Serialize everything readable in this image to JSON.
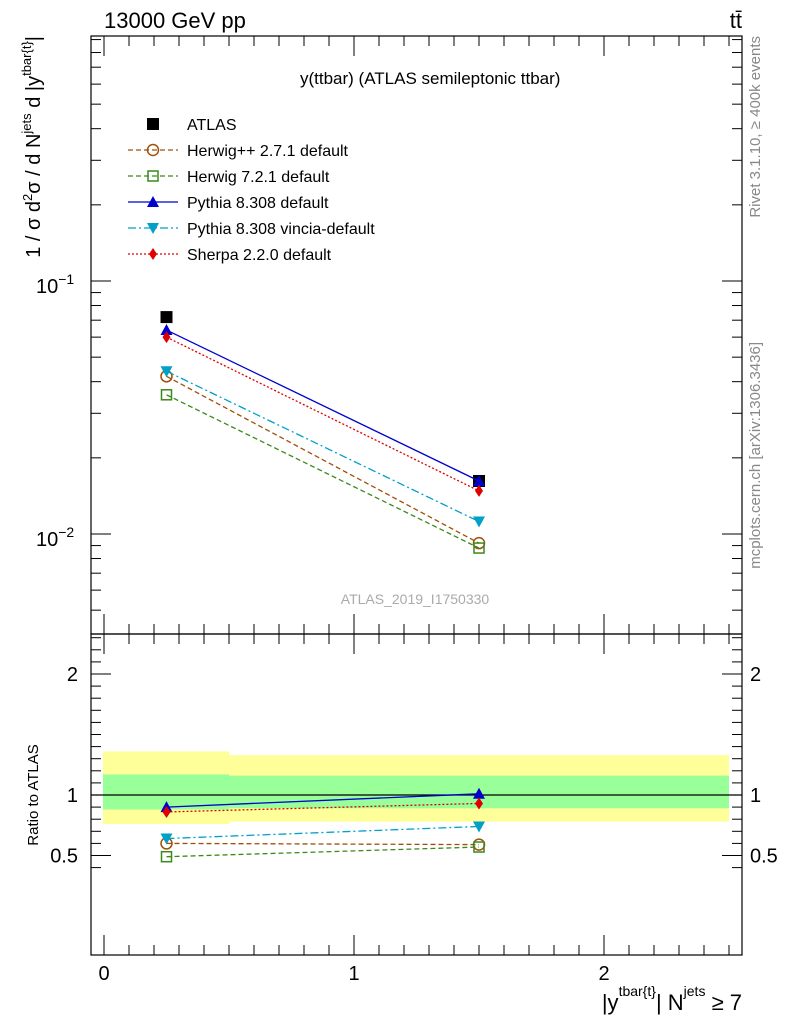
{
  "header": {
    "energy_label": "13000 GeV pp",
    "process_label": "tt̄"
  },
  "plot_title": "y(ttbar) (ATLAS semileptonic ttbar)",
  "watermark": "ATLAS_2019_I1750330",
  "side_text": {
    "rivet": "Rivet 3.1.10, ≥ 400k events",
    "mcplots": "mcplots.cern.ch [arXiv:1306.3436]"
  },
  "axes": {
    "main_ylabel": "1 / σ d²σ / d Nʲᵉᵗˢ d |y^tbar{t}|",
    "main_ylabel_parts": {
      "a": "1 / σ d",
      "b": "2",
      "c": "σ / d N",
      "d": "jets",
      "e": " d |y",
      "f": "tbar{t}",
      "g": "|"
    },
    "ratio_ylabel": "Ratio to ATLAS",
    "xlabel_parts": {
      "a": "|y",
      "b": "tbar{t}",
      "c": "| N",
      "d": "jets",
      "e": " ≥ 7"
    },
    "main_ytick_labels": {
      "e1_base": "10",
      "e1_exp": "−1",
      "e2_base": "10",
      "e2_exp": "−2"
    },
    "ratio_ytick_labels": [
      "0.5",
      "1",
      "2"
    ],
    "xtick_labels": [
      "0",
      "1",
      "2"
    ]
  },
  "colors": {
    "atlas": "#000000",
    "herwigpp": "#a0500a",
    "herwig7": "#3a8a1a",
    "pythia": "#0000cc",
    "vincia": "#00a0c8",
    "sherpa": "#e00000",
    "band_inner": "#99ff99",
    "band_outer": "#ffff99"
  },
  "chart_data": {
    "type": "line",
    "xlim": [
      -0.1,
      2.55
    ],
    "main_ylim": [
      0.004,
      1.0
    ],
    "main_yscale": "log",
    "ratio_ylim": [
      0.3,
      2.5
    ],
    "x": [
      0.25,
      1.5
    ],
    "series": [
      {
        "key": "atlas",
        "name": "ATLAS",
        "values": [
          0.072,
          0.0162
        ],
        "marker": "square-filled",
        "line": "none"
      },
      {
        "key": "herwigpp",
        "name": "Herwig++ 2.7.1 default",
        "values": [
          0.042,
          0.0092
        ],
        "ratio": [
          0.6,
          0.59
        ],
        "marker": "circle-open",
        "line": "dashed"
      },
      {
        "key": "herwig7",
        "name": "Herwig 7.2.1 default",
        "values": [
          0.0355,
          0.0088
        ],
        "ratio": [
          0.49,
          0.57
        ],
        "marker": "square-open",
        "line": "dashed"
      },
      {
        "key": "pythia",
        "name": "Pythia 8.308 default",
        "values": [
          0.064,
          0.0162
        ],
        "ratio": [
          0.9,
          1.01
        ],
        "marker": "triangle-up",
        "line": "solid"
      },
      {
        "key": "vincia",
        "name": "Pythia 8.308 vincia-default",
        "values": [
          0.044,
          0.0112
        ],
        "ratio": [
          0.64,
          0.74
        ],
        "marker": "triangle-down",
        "line": "dashdot"
      },
      {
        "key": "sherpa",
        "name": "Sherpa 2.2.0 default",
        "values": [
          0.06,
          0.0148
        ],
        "ratio": [
          0.86,
          0.93
        ],
        "marker": "diamond",
        "line": "dotted"
      }
    ],
    "ratio_bands": [
      {
        "xlo": -0.1,
        "xhi": 0.5,
        "inner": [
          0.88,
          1.17
        ],
        "outer": [
          0.76,
          1.36
        ]
      },
      {
        "xlo": 0.5,
        "xhi": 2.5,
        "inner": [
          0.89,
          1.16
        ],
        "outer": [
          0.78,
          1.33
        ]
      }
    ]
  }
}
